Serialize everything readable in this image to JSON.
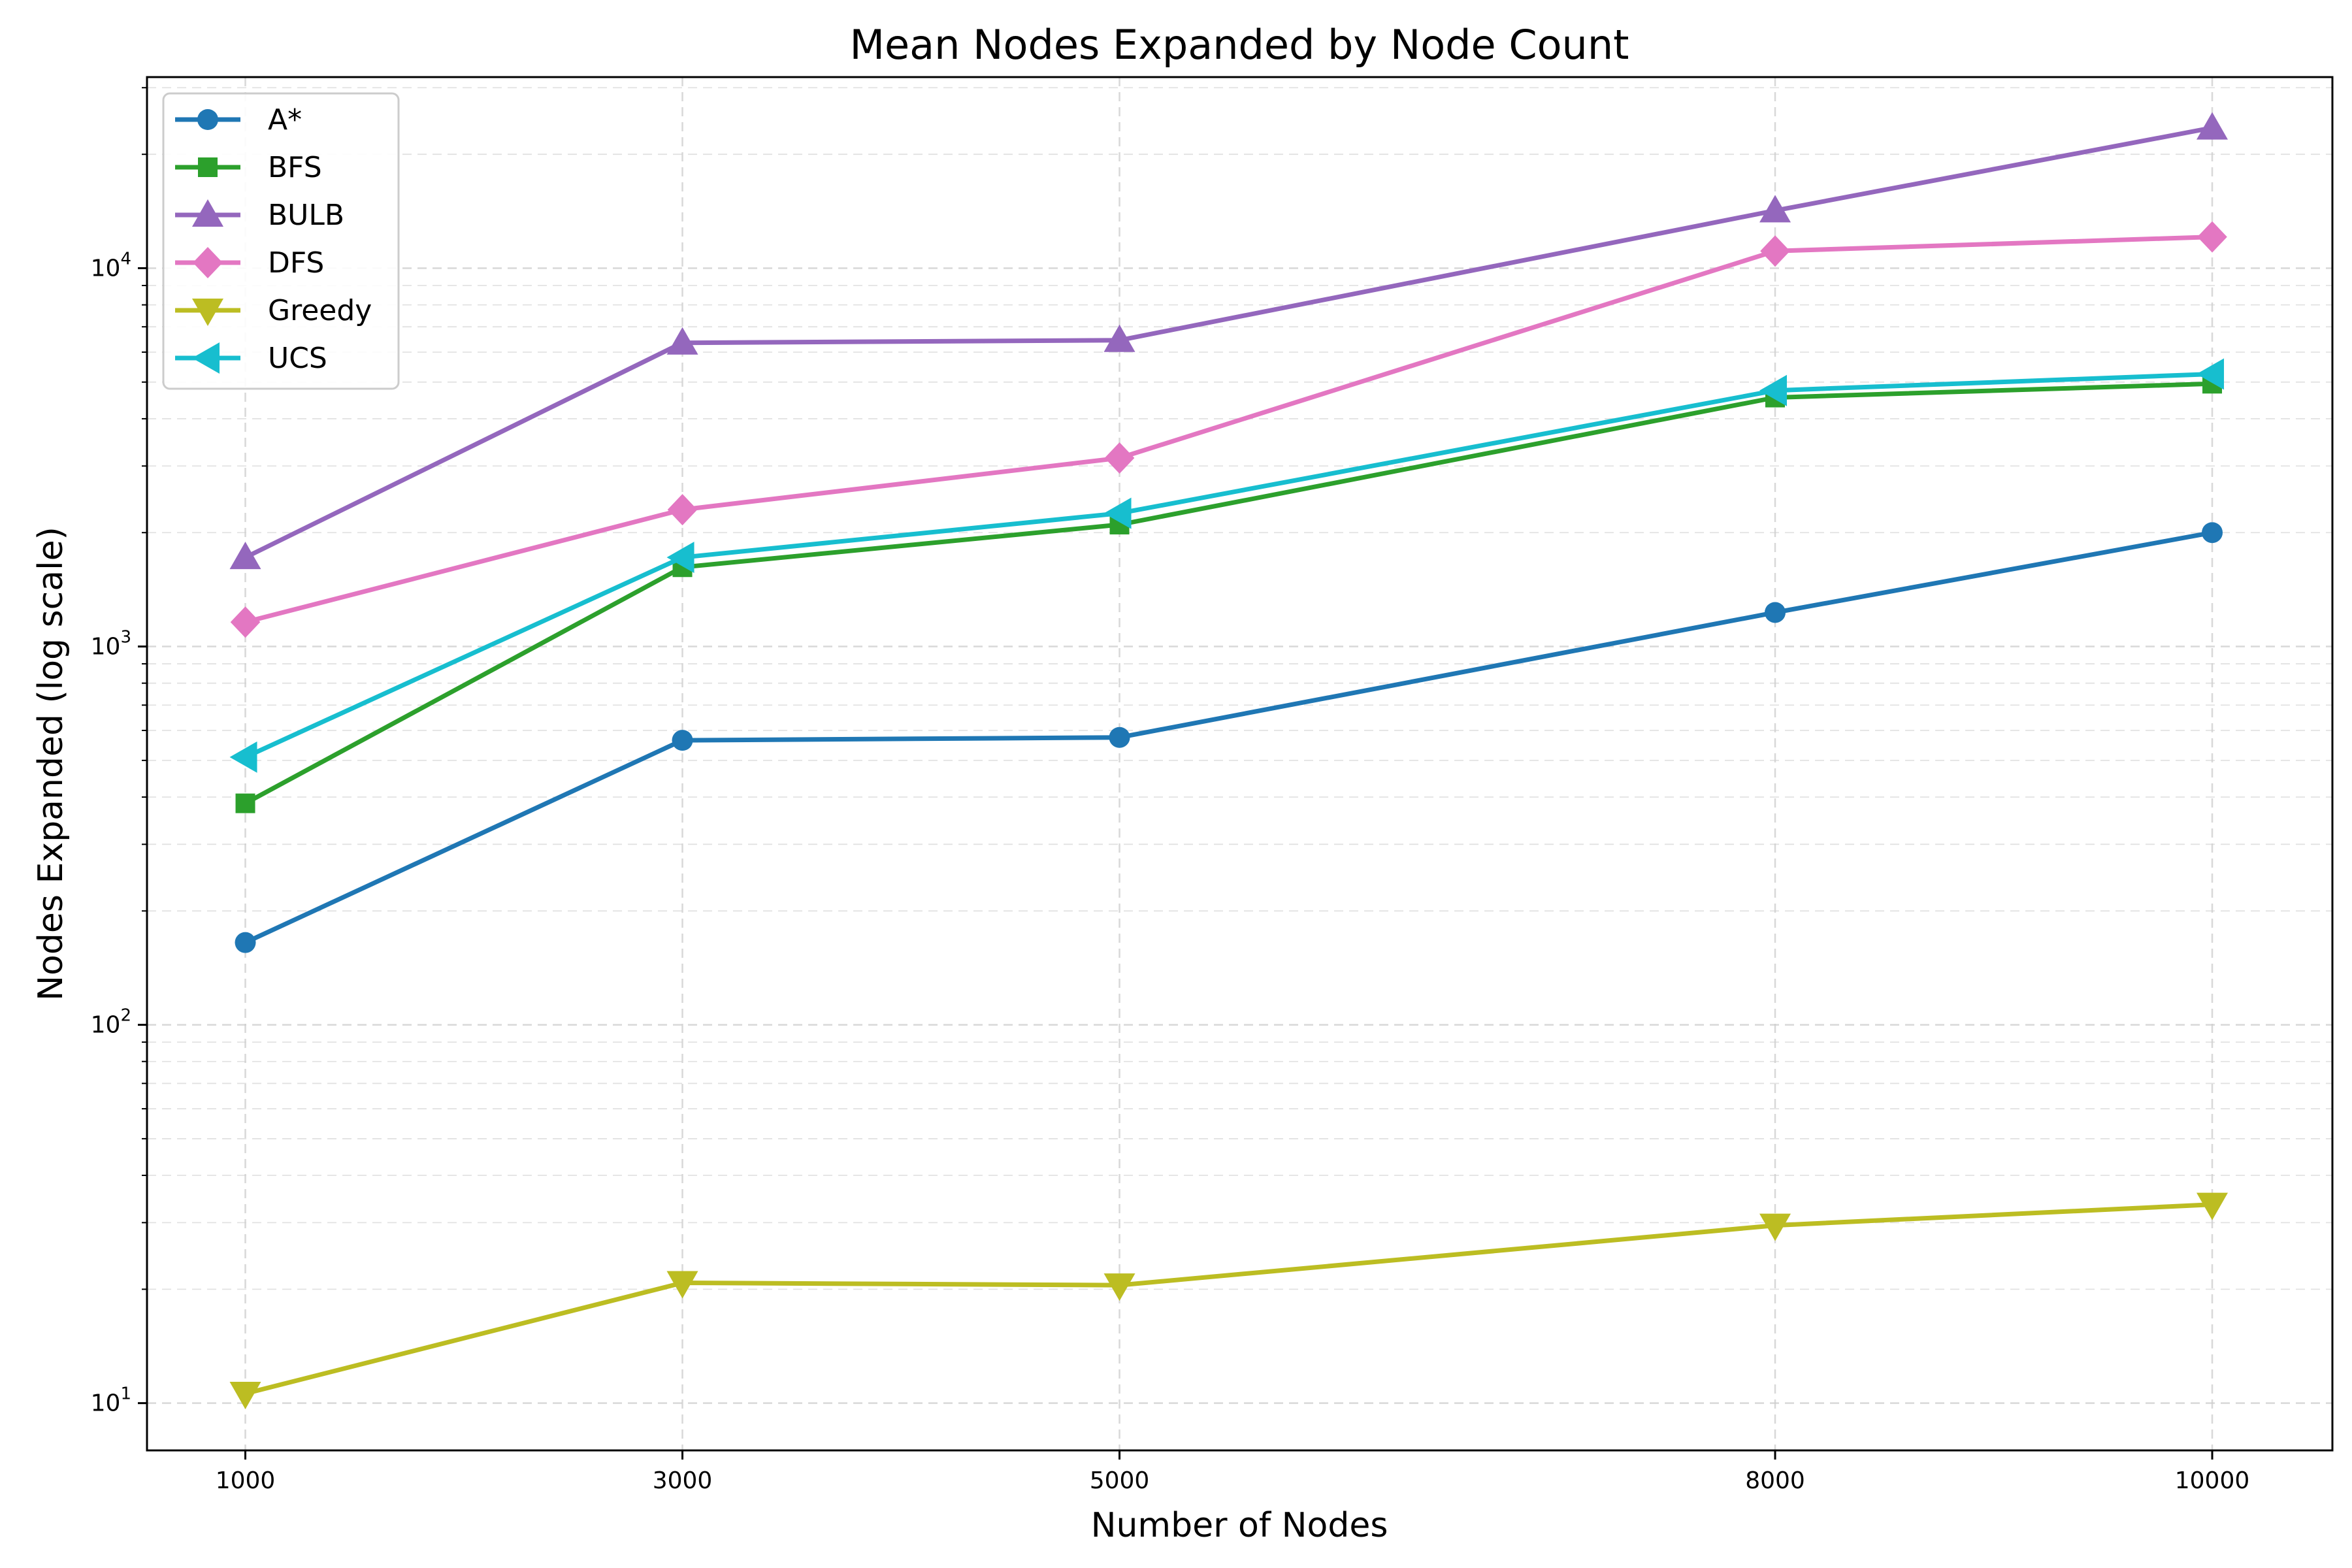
{
  "chart_data": {
    "type": "line",
    "title": "Mean Nodes Expanded by Node Count",
    "xlabel": "Number of Nodes",
    "ylabel": "Nodes Expanded (log scale)",
    "yscale": "log",
    "ylim": [
      7.5,
      32000
    ],
    "x": [
      1000,
      3000,
      5000,
      8000,
      10000
    ],
    "x_ticks": [
      "1000",
      "3000",
      "5000",
      "8000",
      "10000"
    ],
    "grid": true,
    "legend_position": "top-left",
    "series": [
      {
        "name": "A*",
        "color": "#1f77b4",
        "marker": "circle",
        "values": [
          165,
          565,
          575,
          1230,
          2000
        ]
      },
      {
        "name": "BFS",
        "color": "#2ca02c",
        "marker": "square",
        "values": [
          385,
          1620,
          2100,
          4550,
          4950
        ]
      },
      {
        "name": "BULB",
        "color": "#9467bd",
        "marker": "triangle-up",
        "values": [
          1720,
          6350,
          6450,
          14200,
          23500
        ]
      },
      {
        "name": "DFS",
        "color": "#e377c2",
        "marker": "diamond",
        "values": [
          1160,
          2300,
          3150,
          11100,
          12100
        ]
      },
      {
        "name": "Greedy",
        "color": "#bcbd22",
        "marker": "triangle-down",
        "values": [
          10.6,
          20.8,
          20.5,
          29.5,
          33.5
        ]
      },
      {
        "name": "UCS",
        "color": "#17becf",
        "marker": "triangle-left",
        "values": [
          510,
          1720,
          2250,
          4750,
          5250
        ]
      }
    ]
  }
}
